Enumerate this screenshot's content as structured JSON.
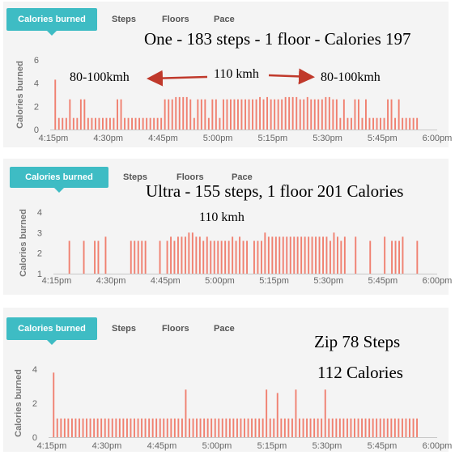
{
  "panels": [
    {
      "tabs": {
        "active": "Calories burned",
        "others": [
          "Steps",
          "Floors",
          "Pace"
        ]
      },
      "annotations": {
        "title": "One - 183 steps - 1 floor - Calories 197",
        "left": "80-100kmh",
        "center": "110 kmh",
        "right": "80-100kmh"
      }
    },
    {
      "tabs": {
        "active": "Calories burned",
        "others": [
          "Steps",
          "Floors",
          "Pace"
        ]
      },
      "annotations": {
        "title": "Ultra - 155 steps, 1 floor 201 Calories",
        "center": "110 kmh"
      }
    },
    {
      "tabs": {
        "active": "Calories burned",
        "others": [
          "Steps",
          "Floors",
          "Pace"
        ]
      },
      "annotations": {
        "line1": "Zip 78 Steps",
        "line2": "112 Calories"
      }
    }
  ],
  "chart_data": [
    {
      "type": "bar",
      "ylabel": "Calories burned",
      "ylim": [
        0,
        6
      ],
      "yticks": [
        "0",
        "2",
        "4",
        "6"
      ],
      "x_tick_labels": [
        "4:15pm",
        "4:30pm",
        "4:45pm",
        "5:00pm",
        "5:15pm",
        "5:30pm",
        "5:45pm",
        "6:00pm"
      ],
      "x_range_minutes": [
        0,
        105
      ],
      "bar_color": "#f08070",
      "bars": [
        {
          "t": 0,
          "v": 4.3
        },
        {
          "t": 1,
          "v": 1
        },
        {
          "t": 2,
          "v": 1
        },
        {
          "t": 3,
          "v": 1
        },
        {
          "t": 4,
          "v": 2.6
        },
        {
          "t": 5,
          "v": 1
        },
        {
          "t": 6,
          "v": 1
        },
        {
          "t": 7,
          "v": 2.6
        },
        {
          "t": 8,
          "v": 2.6
        },
        {
          "t": 9,
          "v": 1
        },
        {
          "t": 10,
          "v": 1
        },
        {
          "t": 11,
          "v": 1
        },
        {
          "t": 12,
          "v": 1
        },
        {
          "t": 13,
          "v": 1
        },
        {
          "t": 14,
          "v": 1
        },
        {
          "t": 15,
          "v": 1
        },
        {
          "t": 16,
          "v": 1
        },
        {
          "t": 17,
          "v": 2.6
        },
        {
          "t": 18,
          "v": 2.6
        },
        {
          "t": 19,
          "v": 1
        },
        {
          "t": 20,
          "v": 1
        },
        {
          "t": 21,
          "v": 1
        },
        {
          "t": 22,
          "v": 1
        },
        {
          "t": 23,
          "v": 1
        },
        {
          "t": 24,
          "v": 1
        },
        {
          "t": 25,
          "v": 1
        },
        {
          "t": 26,
          "v": 1
        },
        {
          "t": 27,
          "v": 1
        },
        {
          "t": 28,
          "v": 1
        },
        {
          "t": 29,
          "v": 1
        },
        {
          "t": 30,
          "v": 2.6
        },
        {
          "t": 31,
          "v": 2.6
        },
        {
          "t": 32,
          "v": 2.6
        },
        {
          "t": 33,
          "v": 2.8
        },
        {
          "t": 34,
          "v": 2.8
        },
        {
          "t": 35,
          "v": 2.8
        },
        {
          "t": 36,
          "v": 2.8
        },
        {
          "t": 37,
          "v": 2.6
        },
        {
          "t": 38,
          "v": 1
        },
        {
          "t": 39,
          "v": 2.6
        },
        {
          "t": 40,
          "v": 2.6
        },
        {
          "t": 41,
          "v": 2.6
        },
        {
          "t": 42,
          "v": 1
        },
        {
          "t": 43,
          "v": 2.6
        },
        {
          "t": 44,
          "v": 2.6
        },
        {
          "t": 45,
          "v": 1
        },
        {
          "t": 46,
          "v": 2.6
        },
        {
          "t": 47,
          "v": 2.6
        },
        {
          "t": 48,
          "v": 2.6
        },
        {
          "t": 49,
          "v": 2.6
        },
        {
          "t": 50,
          "v": 2.6
        },
        {
          "t": 51,
          "v": 2.6
        },
        {
          "t": 52,
          "v": 2.6
        },
        {
          "t": 53,
          "v": 2.6
        },
        {
          "t": 54,
          "v": 2.6
        },
        {
          "t": 55,
          "v": 2.6
        },
        {
          "t": 56,
          "v": 2.8
        },
        {
          "t": 57,
          "v": 2.6
        },
        {
          "t": 58,
          "v": 2.8
        },
        {
          "t": 59,
          "v": 2.6
        },
        {
          "t": 60,
          "v": 2.6
        },
        {
          "t": 61,
          "v": 2.6
        },
        {
          "t": 62,
          "v": 2.6
        },
        {
          "t": 63,
          "v": 2.8
        },
        {
          "t": 64,
          "v": 2.8
        },
        {
          "t": 65,
          "v": 2.8
        },
        {
          "t": 66,
          "v": 2.8
        },
        {
          "t": 67,
          "v": 2.6
        },
        {
          "t": 68,
          "v": 2.6
        },
        {
          "t": 69,
          "v": 2.8
        },
        {
          "t": 70,
          "v": 2.6
        },
        {
          "t": 71,
          "v": 2.6
        },
        {
          "t": 72,
          "v": 2.6
        },
        {
          "t": 73,
          "v": 2.6
        },
        {
          "t": 74,
          "v": 2.8
        },
        {
          "t": 75,
          "v": 2.8
        },
        {
          "t": 76,
          "v": 2.6
        },
        {
          "t": 77,
          "v": 2.6
        },
        {
          "t": 78,
          "v": 1
        },
        {
          "t": 79,
          "v": 2.6
        },
        {
          "t": 80,
          "v": 1
        },
        {
          "t": 81,
          "v": 1
        },
        {
          "t": 82,
          "v": 2.6
        },
        {
          "t": 83,
          "v": 2.6
        },
        {
          "t": 84,
          "v": 1
        },
        {
          "t": 85,
          "v": 2.6
        },
        {
          "t": 86,
          "v": 1
        },
        {
          "t": 87,
          "v": 1
        },
        {
          "t": 88,
          "v": 1
        },
        {
          "t": 89,
          "v": 1
        },
        {
          "t": 90,
          "v": 1
        },
        {
          "t": 91,
          "v": 2.6
        },
        {
          "t": 92,
          "v": 2.6
        },
        {
          "t": 93,
          "v": 1
        },
        {
          "t": 94,
          "v": 2.6
        },
        {
          "t": 95,
          "v": 1
        },
        {
          "t": 96,
          "v": 1
        },
        {
          "t": 97,
          "v": 1
        },
        {
          "t": 98,
          "v": 1
        },
        {
          "t": 99,
          "v": 1
        }
      ]
    },
    {
      "type": "bar",
      "ylabel": "Calories burned",
      "ylim": [
        1,
        4
      ],
      "yticks": [
        "1",
        "2",
        "3",
        "4"
      ],
      "x_tick_labels": [
        "4:15pm",
        "4:30pm",
        "4:45pm",
        "5:00pm",
        "5:15pm",
        "5:30pm",
        "5:45pm",
        "6:00pm"
      ],
      "x_range_minutes": [
        0,
        105
      ],
      "bar_color": "#f08070",
      "bars": [
        {
          "t": 3,
          "v": 2.6
        },
        {
          "t": 7,
          "v": 2.6
        },
        {
          "t": 10,
          "v": 2.6
        },
        {
          "t": 11,
          "v": 2.6
        },
        {
          "t": 13,
          "v": 2.8
        },
        {
          "t": 20,
          "v": 2.6
        },
        {
          "t": 21,
          "v": 2.6
        },
        {
          "t": 22,
          "v": 2.6
        },
        {
          "t": 23,
          "v": 2.6
        },
        {
          "t": 24,
          "v": 2.6
        },
        {
          "t": 28,
          "v": 2.6
        },
        {
          "t": 30,
          "v": 2.6
        },
        {
          "t": 31,
          "v": 2.8
        },
        {
          "t": 32,
          "v": 2.6
        },
        {
          "t": 33,
          "v": 2.8
        },
        {
          "t": 34,
          "v": 2.8
        },
        {
          "t": 35,
          "v": 2.8
        },
        {
          "t": 36,
          "v": 3.0
        },
        {
          "t": 37,
          "v": 3.0
        },
        {
          "t": 38,
          "v": 2.8
        },
        {
          "t": 39,
          "v": 2.8
        },
        {
          "t": 40,
          "v": 2.6
        },
        {
          "t": 41,
          "v": 2.8
        },
        {
          "t": 42,
          "v": 2.6
        },
        {
          "t": 43,
          "v": 2.6
        },
        {
          "t": 44,
          "v": 2.6
        },
        {
          "t": 45,
          "v": 2.6
        },
        {
          "t": 46,
          "v": 2.6
        },
        {
          "t": 47,
          "v": 2.6
        },
        {
          "t": 48,
          "v": 2.8
        },
        {
          "t": 49,
          "v": 2.6
        },
        {
          "t": 50,
          "v": 2.8
        },
        {
          "t": 51,
          "v": 2.6
        },
        {
          "t": 52,
          "v": 2.6
        },
        {
          "t": 54,
          "v": 2.6
        },
        {
          "t": 55,
          "v": 2.6
        },
        {
          "t": 56,
          "v": 2.6
        },
        {
          "t": 57,
          "v": 3.0
        },
        {
          "t": 58,
          "v": 2.8
        },
        {
          "t": 59,
          "v": 2.8
        },
        {
          "t": 60,
          "v": 2.8
        },
        {
          "t": 61,
          "v": 2.8
        },
        {
          "t": 62,
          "v": 2.8
        },
        {
          "t": 63,
          "v": 2.8
        },
        {
          "t": 64,
          "v": 2.8
        },
        {
          "t": 65,
          "v": 2.8
        },
        {
          "t": 66,
          "v": 2.8
        },
        {
          "t": 67,
          "v": 2.8
        },
        {
          "t": 68,
          "v": 2.8
        },
        {
          "t": 69,
          "v": 2.8
        },
        {
          "t": 70,
          "v": 2.8
        },
        {
          "t": 71,
          "v": 2.8
        },
        {
          "t": 72,
          "v": 2.8
        },
        {
          "t": 73,
          "v": 2.8
        },
        {
          "t": 74,
          "v": 2.8
        },
        {
          "t": 75,
          "v": 2.6
        },
        {
          "t": 76,
          "v": 3.0
        },
        {
          "t": 77,
          "v": 2.8
        },
        {
          "t": 78,
          "v": 2.6
        },
        {
          "t": 79,
          "v": 2.8
        },
        {
          "t": 82,
          "v": 2.8
        },
        {
          "t": 86,
          "v": 2.6
        },
        {
          "t": 90,
          "v": 2.8
        },
        {
          "t": 92,
          "v": 2.6
        },
        {
          "t": 93,
          "v": 2.6
        },
        {
          "t": 94,
          "v": 2.6
        },
        {
          "t": 95,
          "v": 2.8
        },
        {
          "t": 99,
          "v": 2.6
        }
      ]
    },
    {
      "type": "bar",
      "ylabel": "Calories burned",
      "ylim": [
        0,
        4
      ],
      "yticks": [
        "0",
        "2",
        "4"
      ],
      "x_tick_labels": [
        "4:15pm",
        "4:30pm",
        "4:45pm",
        "5:00pm",
        "5:15pm",
        "5:30pm",
        "5:45pm",
        "6:00pm"
      ],
      "x_range_minutes": [
        0,
        105
      ],
      "bar_color": "#f08070",
      "bars": [
        {
          "t": 0,
          "v": 3.8
        },
        {
          "t": 1,
          "v": 1.1
        },
        {
          "t": 2,
          "v": 1.1
        },
        {
          "t": 3,
          "v": 1.1
        },
        {
          "t": 4,
          "v": 1.1
        },
        {
          "t": 5,
          "v": 1.1
        },
        {
          "t": 6,
          "v": 1.1
        },
        {
          "t": 7,
          "v": 1.1
        },
        {
          "t": 8,
          "v": 1.1
        },
        {
          "t": 9,
          "v": 1.1
        },
        {
          "t": 10,
          "v": 1.1
        },
        {
          "t": 11,
          "v": 1.1
        },
        {
          "t": 12,
          "v": 1.1
        },
        {
          "t": 13,
          "v": 1.1
        },
        {
          "t": 14,
          "v": 1.1
        },
        {
          "t": 15,
          "v": 1.1
        },
        {
          "t": 16,
          "v": 1.1
        },
        {
          "t": 17,
          "v": 1.1
        },
        {
          "t": 18,
          "v": 1.1
        },
        {
          "t": 19,
          "v": 1.1
        },
        {
          "t": 20,
          "v": 1.1
        },
        {
          "t": 21,
          "v": 1.1
        },
        {
          "t": 22,
          "v": 1.1
        },
        {
          "t": 23,
          "v": 1.1
        },
        {
          "t": 24,
          "v": 1.1
        },
        {
          "t": 25,
          "v": 1.1
        },
        {
          "t": 26,
          "v": 1.1
        },
        {
          "t": 27,
          "v": 1.1
        },
        {
          "t": 28,
          "v": 1.1
        },
        {
          "t": 29,
          "v": 1.1
        },
        {
          "t": 30,
          "v": 1.1
        },
        {
          "t": 31,
          "v": 1.1
        },
        {
          "t": 32,
          "v": 1.1
        },
        {
          "t": 33,
          "v": 1.1
        },
        {
          "t": 34,
          "v": 1.1
        },
        {
          "t": 35,
          "v": 1.1
        },
        {
          "t": 36,
          "v": 2.8
        },
        {
          "t": 37,
          "v": 1.1
        },
        {
          "t": 38,
          "v": 1.1
        },
        {
          "t": 39,
          "v": 1.1
        },
        {
          "t": 40,
          "v": 1.1
        },
        {
          "t": 41,
          "v": 1.1
        },
        {
          "t": 42,
          "v": 1.1
        },
        {
          "t": 43,
          "v": 1.1
        },
        {
          "t": 44,
          "v": 1.1
        },
        {
          "t": 45,
          "v": 1.1
        },
        {
          "t": 46,
          "v": 1.1
        },
        {
          "t": 47,
          "v": 1.1
        },
        {
          "t": 48,
          "v": 1.1
        },
        {
          "t": 49,
          "v": 1.1
        },
        {
          "t": 50,
          "v": 1.1
        },
        {
          "t": 51,
          "v": 1.1
        },
        {
          "t": 52,
          "v": 1.1
        },
        {
          "t": 53,
          "v": 1.1
        },
        {
          "t": 54,
          "v": 1.1
        },
        {
          "t": 55,
          "v": 1.1
        },
        {
          "t": 56,
          "v": 1.1
        },
        {
          "t": 57,
          "v": 1.1
        },
        {
          "t": 58,
          "v": 2.8
        },
        {
          "t": 59,
          "v": 1.1
        },
        {
          "t": 60,
          "v": 1.1
        },
        {
          "t": 61,
          "v": 2.6
        },
        {
          "t": 62,
          "v": 1.1
        },
        {
          "t": 63,
          "v": 1.1
        },
        {
          "t": 64,
          "v": 1.1
        },
        {
          "t": 65,
          "v": 1.1
        },
        {
          "t": 66,
          "v": 2.8
        },
        {
          "t": 67,
          "v": 1.1
        },
        {
          "t": 68,
          "v": 1.1
        },
        {
          "t": 69,
          "v": 1.1
        },
        {
          "t": 70,
          "v": 1.1
        },
        {
          "t": 71,
          "v": 1.1
        },
        {
          "t": 72,
          "v": 1.1
        },
        {
          "t": 73,
          "v": 1.1
        },
        {
          "t": 74,
          "v": 2.8
        },
        {
          "t": 75,
          "v": 1.1
        },
        {
          "t": 76,
          "v": 1.1
        },
        {
          "t": 77,
          "v": 1.1
        },
        {
          "t": 78,
          "v": 1.1
        },
        {
          "t": 79,
          "v": 1.1
        },
        {
          "t": 80,
          "v": 1.1
        },
        {
          "t": 81,
          "v": 1.1
        },
        {
          "t": 82,
          "v": 1.1
        },
        {
          "t": 83,
          "v": 1.1
        },
        {
          "t": 84,
          "v": 1.1
        },
        {
          "t": 85,
          "v": 1.1
        },
        {
          "t": 86,
          "v": 1.1
        },
        {
          "t": 87,
          "v": 1.1
        },
        {
          "t": 88,
          "v": 1.1
        },
        {
          "t": 89,
          "v": 1.1
        },
        {
          "t": 90,
          "v": 1.1
        },
        {
          "t": 91,
          "v": 1.1
        },
        {
          "t": 92,
          "v": 1.1
        },
        {
          "t": 93,
          "v": 1.1
        },
        {
          "t": 94,
          "v": 1.1
        },
        {
          "t": 95,
          "v": 1.1
        },
        {
          "t": 96,
          "v": 1.1
        },
        {
          "t": 97,
          "v": 1.1
        },
        {
          "t": 98,
          "v": 1.1
        },
        {
          "t": 99,
          "v": 1.1
        }
      ]
    }
  ],
  "colors": {
    "tab_active_bg": "#3ebcc4",
    "bar": "#f08070",
    "arrow": "#c0392b",
    "panel_bg": "#f4f4f4"
  }
}
